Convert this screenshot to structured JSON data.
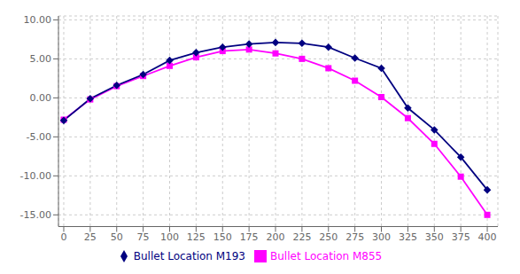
{
  "chart_data": {
    "type": "line",
    "x": [
      0,
      25,
      50,
      75,
      100,
      125,
      150,
      175,
      200,
      225,
      250,
      275,
      300,
      325,
      350,
      375,
      400
    ],
    "series": [
      {
        "name": "Bullet Location M855",
        "color": "#FF00FF",
        "marker": "square",
        "values": [
          -2.8,
          -0.2,
          1.5,
          2.8,
          4.1,
          5.2,
          6.0,
          6.2,
          5.7,
          5.0,
          3.8,
          2.2,
          0.1,
          -2.6,
          -5.9,
          -10.1,
          -15.0
        ]
      },
      {
        "name": "Bullet Location M193",
        "color": "#000080",
        "marker": "diamond",
        "values": [
          -2.9,
          -0.1,
          1.6,
          3.0,
          4.8,
          5.8,
          6.5,
          6.9,
          7.1,
          7.0,
          6.5,
          5.1,
          3.8,
          -1.3,
          -4.1,
          -7.6,
          -11.8
        ]
      }
    ],
    "xlim": [
      -5,
      410
    ],
    "xticks": [
      0,
      25,
      50,
      75,
      100,
      125,
      150,
      175,
      200,
      225,
      250,
      275,
      300,
      325,
      350,
      375,
      400
    ],
    "ylim": [
      -16.5,
      10.5
    ],
    "yticks": [
      {
        "value": -15,
        "label": "-15.00"
      },
      {
        "value": -10,
        "label": "-10.00"
      },
      {
        "value": -5,
        "label": "-5.00"
      },
      {
        "value": 0,
        "label": "0.00"
      },
      {
        "value": 5,
        "label": "5.00"
      },
      {
        "value": 10,
        "label": "10.00"
      }
    ],
    "grid": true,
    "legend": "bottom"
  }
}
